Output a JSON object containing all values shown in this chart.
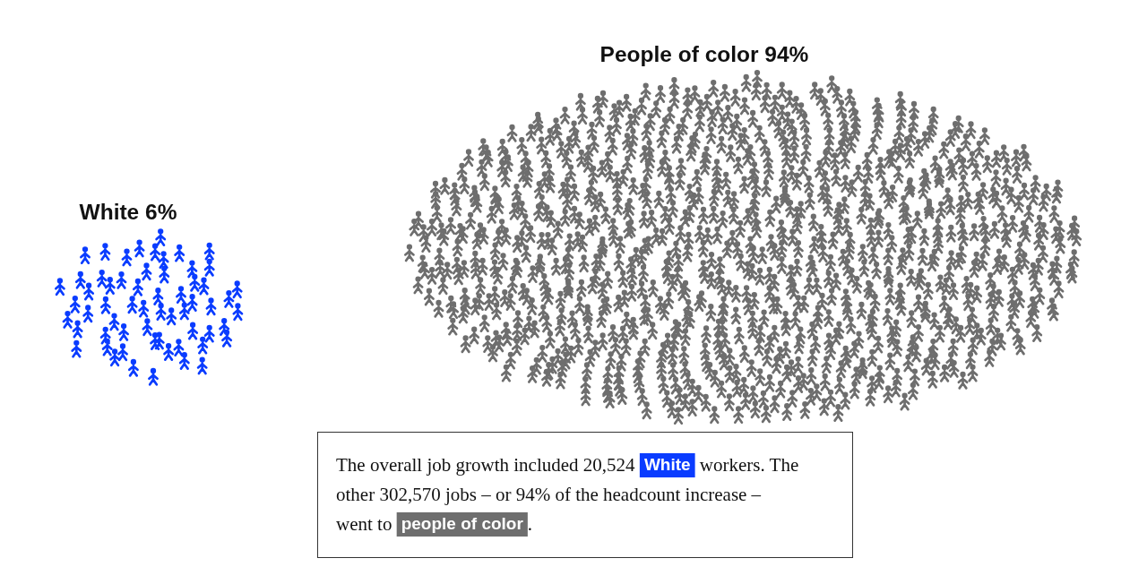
{
  "chart_data": {
    "type": "other",
    "categories": [
      "White",
      "People of color"
    ],
    "values": [
      6,
      94
    ],
    "value_labels": [
      "6%",
      "94%"
    ],
    "colors": [
      "#0a3cff",
      "#6e6e6e"
    ],
    "annotations": [
      "The overall job growth included 20,524 White workers. The other 302,570 jobs – or 94% of the headcount increase – went to people of color."
    ]
  }
}
